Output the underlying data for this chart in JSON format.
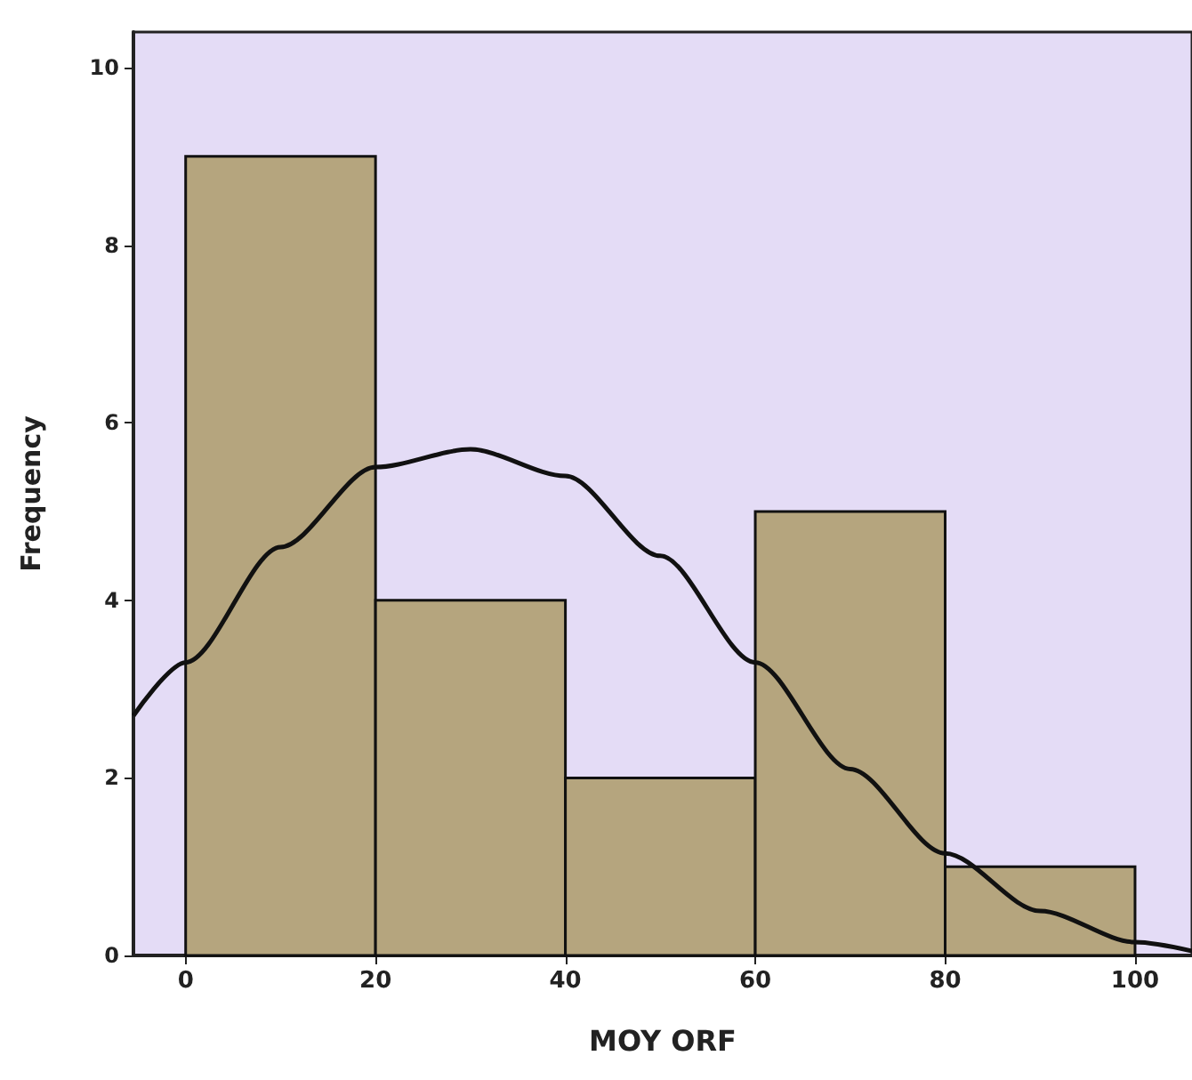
{
  "chart_data": {
    "type": "histogram",
    "xlabel": "MOY ORF",
    "ylabel": "Frequency",
    "bins": [
      0,
      20,
      40,
      60,
      80,
      100
    ],
    "values": [
      9,
      4,
      2,
      5,
      1
    ],
    "color": "#b5a57e",
    "series": [
      {
        "type": "line",
        "color": "#111111",
        "x": [
          -5.5,
          0,
          10,
          20,
          30,
          40,
          50,
          60,
          70,
          80,
          90,
          100,
          106
        ],
        "values": [
          2.7,
          3.3,
          4.6,
          5.5,
          5.7,
          5.4,
          4.5,
          3.3,
          2.1,
          1.15,
          0.5,
          0.15,
          0.05
        ]
      }
    ],
    "xlim": [
      -5.5,
      106
    ],
    "xticks": [
      0,
      20,
      40,
      60,
      80,
      100
    ],
    "ylim": [
      0,
      10.4
    ],
    "yticks": [
      0,
      2,
      4,
      6,
      8,
      10
    ],
    "grid": false,
    "marker": "none"
  }
}
